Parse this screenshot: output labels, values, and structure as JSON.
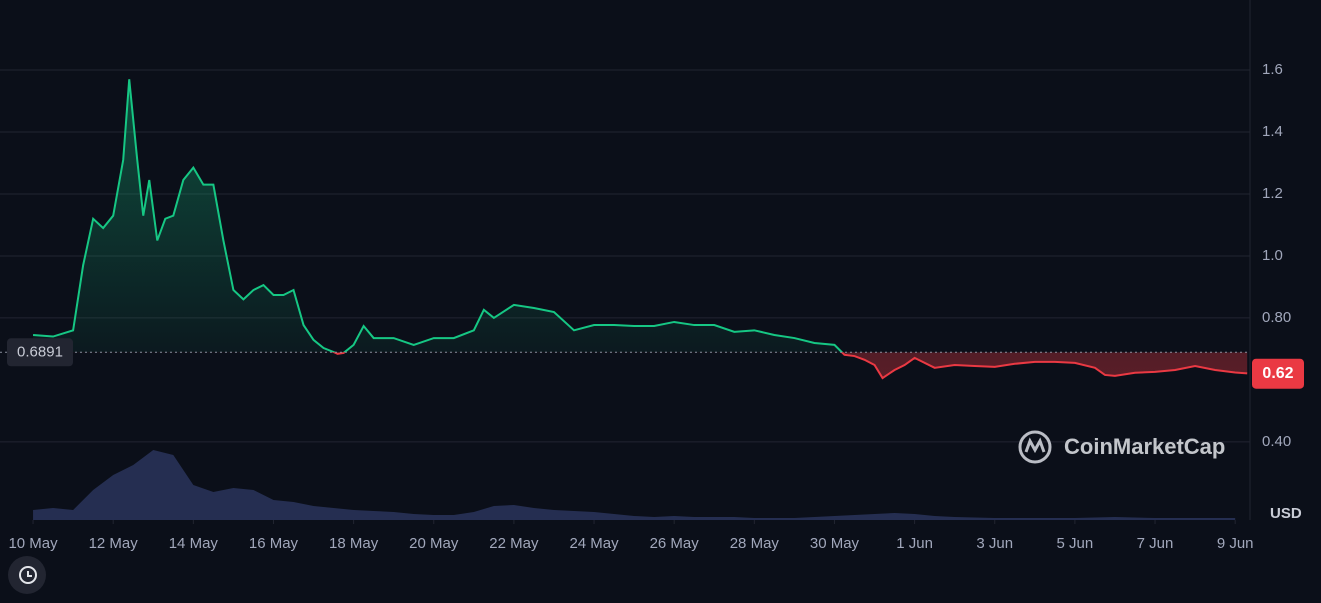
{
  "chart_data": {
    "type": "line",
    "xlim": [
      -0.7,
      30.37
    ],
    "xticks": [
      {
        "value": 0,
        "label": "10 May"
      },
      {
        "value": 2,
        "label": "12 May"
      },
      {
        "value": 4,
        "label": "14 May"
      },
      {
        "value": 6,
        "label": "16 May"
      },
      {
        "value": 8,
        "label": "18 May"
      },
      {
        "value": 10,
        "label": "20 May"
      },
      {
        "value": 12,
        "label": "22 May"
      },
      {
        "value": 14,
        "label": "24 May"
      },
      {
        "value": 16,
        "label": "26 May"
      },
      {
        "value": 18,
        "label": "28 May"
      },
      {
        "value": 20,
        "label": "30 May"
      },
      {
        "value": 22,
        "label": "1 Jun"
      },
      {
        "value": 24,
        "label": "3 Jun"
      },
      {
        "value": 26,
        "label": "5 Jun"
      },
      {
        "value": 28,
        "label": "7 Jun"
      },
      {
        "value": 30,
        "label": "9 Jun"
      }
    ],
    "ylim": [
      0.148,
      1.8
    ],
    "yticks": [
      {
        "value": 0.4,
        "label": "0.40"
      },
      {
        "value": 0.8,
        "label": "0.80"
      },
      {
        "value": 1,
        "label": "1.0"
      },
      1.2,
      1.4,
      1.6
    ],
    "y_unit": "USD",
    "grid": true,
    "baseline": 0.6891,
    "current_price": 0.62,
    "up_color": "#16c784",
    "down_color": "#ea3943",
    "watermark": "CoinMarketCap",
    "series": [
      {
        "color": "#16c784",
        "x": [
          0,
          0.5,
          1,
          1.25,
          1.5,
          1.75,
          2,
          2.25,
          2.4,
          2.6,
          2.75,
          2.9,
          3.1,
          3.3,
          3.5,
          3.75,
          4,
          4.25,
          4.5,
          4.75,
          5,
          5.25,
          5.5,
          5.75,
          6,
          6.25,
          6.5,
          6.75,
          7,
          7.25,
          7.5,
          7.6,
          7.75,
          8,
          8.25,
          8.5,
          9,
          9.5,
          10,
          10.5,
          11,
          11.25,
          11.5,
          12,
          12.5,
          13,
          13.5,
          14,
          14.5,
          15,
          15.5,
          16,
          16.5,
          17,
          17.5,
          18,
          18.5,
          19,
          19.5,
          20,
          20.25,
          20.5,
          20.75,
          21,
          21.2,
          21.5,
          21.75,
          22,
          22.5,
          23,
          23.5,
          24,
          24.5,
          25,
          25.5,
          26,
          26.5,
          26.75,
          27,
          27.5,
          28,
          28.5,
          29,
          29.5,
          30,
          30.3
        ],
        "values": [
          0.745,
          0.74,
          0.76,
          0.97,
          1.12,
          1.09,
          1.13,
          1.31,
          1.57,
          1.31,
          1.13,
          1.245,
          1.05,
          1.12,
          1.13,
          1.245,
          1.285,
          1.23,
          1.23,
          1.05,
          0.89,
          0.86,
          0.89,
          0.906,
          0.874,
          0.874,
          0.89,
          0.777,
          0.729,
          0.703,
          0.69,
          0.684,
          0.687,
          0.713,
          0.774,
          0.735,
          0.735,
          0.713,
          0.735,
          0.735,
          0.76,
          0.826,
          0.8,
          0.842,
          0.832,
          0.819,
          0.76,
          0.777,
          0.777,
          0.774,
          0.774,
          0.787,
          0.777,
          0.777,
          0.755,
          0.76,
          0.745,
          0.735,
          0.719,
          0.713,
          0.681,
          0.677,
          0.665,
          0.648,
          0.606,
          0.632,
          0.648,
          0.671,
          0.639,
          0.648,
          0.645,
          0.642,
          0.652,
          0.658,
          0.658,
          0.655,
          0.639,
          0.616,
          0.613,
          0.623,
          0.626,
          0.632,
          0.645,
          0.632,
          0.624,
          0.621
        ]
      },
      {
        "color": "#283258",
        "axis": "y2",
        "x": [
          0,
          0.5,
          1,
          1.5,
          2,
          2.5,
          3,
          3.5,
          4,
          4.5,
          5,
          5.5,
          6,
          6.5,
          7,
          7.5,
          8,
          8.5,
          9,
          9.5,
          10,
          10.5,
          11,
          11.5,
          12,
          12.5,
          13,
          13.5,
          14,
          14.5,
          15,
          15.5,
          16,
          16.5,
          17,
          17.5,
          18,
          18.5,
          19,
          19.5,
          20,
          20.5,
          21,
          21.5,
          22,
          22.5,
          23,
          24,
          25,
          26,
          27,
          28,
          29,
          30
        ],
        "values": [
          10,
          12,
          10,
          30,
          45,
          55,
          70,
          65,
          35,
          28,
          32,
          30,
          20,
          18,
          14,
          12,
          10,
          9,
          8,
          6,
          5,
          5,
          8,
          14,
          15,
          12,
          10,
          9,
          8,
          6,
          4,
          3,
          4,
          3,
          3,
          3,
          2,
          2,
          2,
          3,
          4,
          5,
          6,
          7,
          6,
          4,
          3,
          2,
          2,
          2,
          3,
          2,
          2,
          2
        ]
      }
    ],
    "y2lim": [
      0,
      512
    ]
  }
}
